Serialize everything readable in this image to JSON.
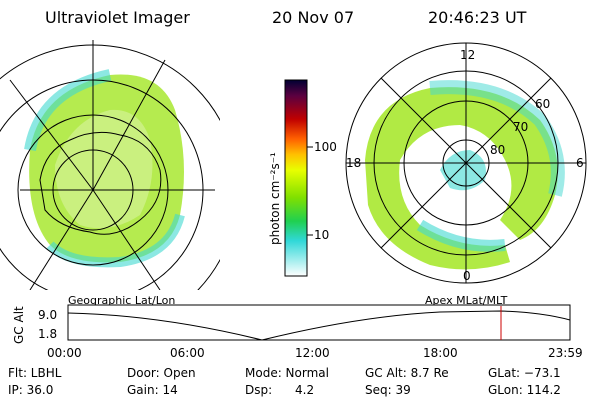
{
  "header": {
    "title": "Ultraviolet Imager",
    "date": "20 Nov 07",
    "time": "20:46:23 UT"
  },
  "left_map": {
    "label": "Geographic Lat/Lon"
  },
  "right_map": {
    "label": "Apex MLat/MLT",
    "mlt_labels": {
      "top": "12",
      "left": "18",
      "right": "6",
      "bottom": "0"
    },
    "lat_labels": [
      "60",
      "70",
      "80"
    ]
  },
  "colorbar": {
    "unit_label": "photon cm⁻²s⁻¹",
    "ticks": [
      "100",
      "10"
    ],
    "colors": [
      "#000033",
      "#1a0033",
      "#5a0040",
      "#9a0010",
      "#d40000",
      "#ff4000",
      "#ff8c00",
      "#ffc000",
      "#ffe800",
      "#e8ff00",
      "#a8f000",
      "#60e000",
      "#20d050",
      "#00c8a0",
      "#30e0e0",
      "#a0f0f0",
      "#e8f8f8"
    ]
  },
  "timeline": {
    "axis_label": "GC Alt",
    "y_ticks": [
      "9.0",
      "1.8"
    ],
    "x_ticks": [
      "00:00",
      "06:00",
      "12:00",
      "18:00",
      "23:59"
    ],
    "marker_color": "#cc0000"
  },
  "info": {
    "filter": "Flt: LBHL",
    "ip": "IP: 36.0",
    "door": "Door: Open",
    "gain": "Gain: 14",
    "mode": "Mode: Normal",
    "dsp": "Dsp:      4.2",
    "gc_alt": "GC Alt: 8.7 Re",
    "seq": "Seq: 39",
    "glat": "GLat: −73.1",
    "glon": "GLon: 114.2"
  }
}
